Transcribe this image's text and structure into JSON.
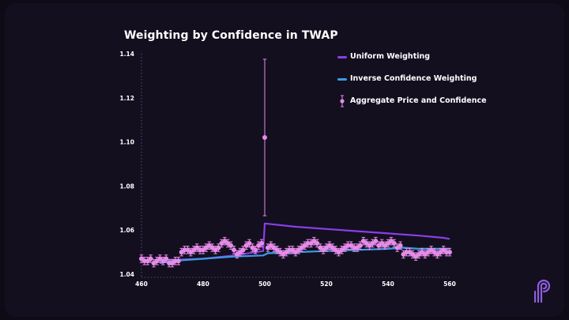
{
  "colors": {
    "background": "#0e0b16",
    "card": "#130f1f",
    "uniform": "#8a3ee8",
    "inverse": "#3b9be6",
    "aggregate": "#e58be8",
    "axis_text": "#ffffff",
    "guide": "#6a5d8a",
    "logo": "#8e5de0"
  },
  "icons": {
    "logo": "pyth-logo-icon"
  },
  "chart_data": {
    "type": "line",
    "title": "Weighting by Confidence in TWAP",
    "xlabel": "",
    "ylabel": "",
    "xlim": [
      459,
      561
    ],
    "ylim": [
      1.04,
      1.145
    ],
    "x_ticks": [
      460,
      480,
      500,
      520,
      540,
      560
    ],
    "y_ticks": [
      1.04,
      1.06,
      1.08,
      1.1,
      1.12,
      1.14
    ],
    "y_tick_labels": [
      "1.04",
      "1.06",
      "1.08",
      "1.10",
      "1.12",
      "1.14"
    ],
    "grid": false,
    "legend_position": "top-right",
    "series": [
      {
        "name": "Uniform Weighting",
        "kind": "line",
        "color": "#8a3ee8",
        "x": [
          466,
          468,
          470,
          480,
          490,
          499.5,
          500,
          510,
          520,
          530,
          540,
          550,
          558,
          560
        ],
        "y": [
          1.045,
          1.046,
          1.0465,
          1.047,
          1.0485,
          1.0505,
          1.063,
          1.0615,
          1.0605,
          1.0595,
          1.0585,
          1.0575,
          1.0565,
          1.056
        ]
      },
      {
        "name": "Inverse Confidence Weighting",
        "kind": "line",
        "color": "#3b9be6",
        "x": [
          466,
          468,
          470,
          480,
          490,
          499.5,
          501,
          510,
          520,
          530,
          540,
          545,
          550,
          555,
          560
        ],
        "y": [
          1.045,
          1.0455,
          1.046,
          1.047,
          1.048,
          1.0485,
          1.0495,
          1.05,
          1.0505,
          1.051,
          1.0515,
          1.052,
          1.0515,
          1.0515,
          1.0515
        ]
      },
      {
        "name": "Aggregate Price and Confidence",
        "kind": "errorbar",
        "color": "#e58be8",
        "x": [
          460,
          461,
          462,
          463,
          464,
          465,
          466,
          467,
          468,
          469,
          470,
          471,
          472,
          473,
          474,
          475,
          476,
          477,
          478,
          479,
          480,
          481,
          482,
          483,
          484,
          485,
          486,
          487,
          488,
          489,
          490,
          491,
          492,
          493,
          494,
          495,
          496,
          497,
          498,
          499,
          500,
          501,
          502,
          503,
          504,
          505,
          506,
          507,
          508,
          509,
          510,
          511,
          512,
          513,
          514,
          515,
          516,
          517,
          518,
          519,
          520,
          521,
          522,
          523,
          524,
          525,
          526,
          527,
          528,
          529,
          530,
          531,
          532,
          533,
          534,
          535,
          536,
          537,
          538,
          539,
          540,
          541,
          542,
          543,
          544,
          545,
          546,
          547,
          548,
          549,
          550,
          551,
          552,
          553,
          554,
          555,
          556,
          557,
          558,
          559,
          560
        ],
        "y": [
          1.047,
          1.046,
          1.046,
          1.047,
          1.045,
          1.046,
          1.047,
          1.046,
          1.047,
          1.045,
          1.045,
          1.046,
          1.046,
          1.05,
          1.051,
          1.051,
          1.05,
          1.051,
          1.052,
          1.051,
          1.051,
          1.052,
          1.053,
          1.052,
          1.051,
          1.052,
          1.054,
          1.055,
          1.054,
          1.053,
          1.051,
          1.049,
          1.05,
          1.051,
          1.053,
          1.054,
          1.052,
          1.051,
          1.053,
          1.054,
          1.102,
          1.052,
          1.053,
          1.052,
          1.051,
          1.05,
          1.049,
          1.05,
          1.051,
          1.051,
          1.05,
          1.051,
          1.052,
          1.053,
          1.054,
          1.054,
          1.055,
          1.054,
          1.052,
          1.051,
          1.052,
          1.053,
          1.052,
          1.051,
          1.05,
          1.051,
          1.052,
          1.053,
          1.053,
          1.052,
          1.052,
          1.053,
          1.055,
          1.054,
          1.053,
          1.054,
          1.055,
          1.053,
          1.054,
          1.053,
          1.054,
          1.055,
          1.054,
          1.052,
          1.053,
          1.049,
          1.05,
          1.05,
          1.049,
          1.048,
          1.049,
          1.05,
          1.049,
          1.05,
          1.051,
          1.05,
          1.049,
          1.05,
          1.051,
          1.05,
          1.05
        ],
        "err": [
          0.0017,
          0.0017,
          0.0017,
          0.0017,
          0.0017,
          0.0017,
          0.0017,
          0.0017,
          0.0017,
          0.0017,
          0.0017,
          0.0017,
          0.0017,
          0.0017,
          0.0017,
          0.0017,
          0.0017,
          0.0017,
          0.0017,
          0.0017,
          0.0017,
          0.0017,
          0.0017,
          0.0017,
          0.0017,
          0.0017,
          0.0017,
          0.0017,
          0.0017,
          0.0017,
          0.0017,
          0.0017,
          0.0017,
          0.0017,
          0.0017,
          0.0017,
          0.0017,
          0.0017,
          0.0017,
          0.0017,
          0.0355,
          0.0017,
          0.0017,
          0.0017,
          0.0017,
          0.0017,
          0.0017,
          0.0017,
          0.0017,
          0.0017,
          0.0017,
          0.0017,
          0.0017,
          0.0017,
          0.0017,
          0.0017,
          0.0017,
          0.0017,
          0.0017,
          0.0017,
          0.0017,
          0.0017,
          0.0017,
          0.0017,
          0.0017,
          0.0017,
          0.0017,
          0.0017,
          0.0017,
          0.0017,
          0.0017,
          0.0017,
          0.0017,
          0.0017,
          0.0017,
          0.0017,
          0.0017,
          0.0017,
          0.0017,
          0.0017,
          0.0017,
          0.0017,
          0.0017,
          0.0017,
          0.0017,
          0.0017,
          0.0017,
          0.0017,
          0.0017,
          0.0017,
          0.0017,
          0.0017,
          0.0017,
          0.0017,
          0.0017,
          0.0017,
          0.0017,
          0.0017,
          0.0017,
          0.0017,
          0.0017
        ]
      }
    ]
  }
}
